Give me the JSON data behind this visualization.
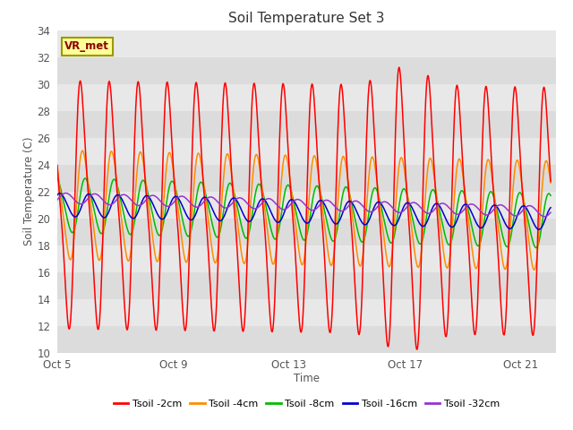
{
  "title": "Soil Temperature Set 3",
  "xlabel": "Time",
  "ylabel": "Soil Temperature (C)",
  "ylim": [
    10,
    34
  ],
  "yticks": [
    10,
    12,
    14,
    16,
    18,
    20,
    22,
    24,
    26,
    28,
    30,
    32,
    34
  ],
  "xtick_labels": [
    "Oct 5",
    "Oct 9",
    "Oct 13",
    "Oct 17",
    "Oct 21"
  ],
  "xtick_days": [
    0,
    4,
    8,
    12,
    16
  ],
  "annotation": "VR_met",
  "legend_labels": [
    "Tsoil -2cm",
    "Tsoil -4cm",
    "Tsoil -8cm",
    "Tsoil -16cm",
    "Tsoil -32cm"
  ],
  "line_colors": [
    "#FF0000",
    "#FF8C00",
    "#00BB00",
    "#0000CC",
    "#9933CC"
  ],
  "title_fontsize": 11,
  "bg_stripe_colors": [
    "#DCDCDC",
    "#E8E8E8"
  ]
}
